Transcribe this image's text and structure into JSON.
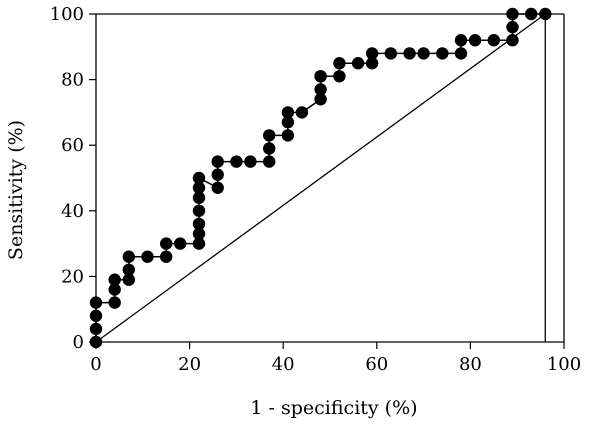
{
  "chart_data": {
    "type": "line",
    "title": "",
    "xlabel": "1 - specificity (%)",
    "ylabel": "Sensitivity (%)",
    "xlim": [
      0,
      100
    ],
    "ylim": [
      0,
      100
    ],
    "x_ticks": [
      "0",
      "20",
      "40",
      "60",
      "80",
      "100"
    ],
    "y_ticks": [
      "0",
      "20",
      "40",
      "60",
      "80",
      "100"
    ],
    "grid": false,
    "legend": "none",
    "colors": {
      "curve": "#000000",
      "marker": "#000000",
      "reference": "#000000"
    },
    "series": [
      {
        "values_x": [
          0,
          0,
          0,
          0,
          4,
          4,
          4,
          7,
          7,
          7,
          11,
          15,
          15,
          18,
          22,
          22,
          22,
          22,
          22,
          22,
          22,
          26,
          26,
          26,
          30,
          33,
          37,
          37,
          37,
          41,
          41,
          41,
          44,
          48,
          48,
          48,
          48,
          52,
          52,
          56,
          59,
          59,
          63,
          67,
          70,
          74,
          78,
          78,
          81,
          85,
          89,
          89,
          89,
          93,
          96
        ],
        "values_y": [
          0,
          4,
          8,
          12,
          12,
          16,
          19,
          19,
          22,
          26,
          26,
          26,
          30,
          30,
          30,
          33,
          36,
          40,
          44,
          47,
          50,
          47,
          51,
          55,
          55,
          55,
          55,
          59,
          63,
          63,
          67,
          70,
          70,
          74,
          77,
          81,
          81,
          81,
          85,
          85,
          85,
          88,
          88,
          88,
          88,
          88,
          88,
          92,
          92,
          92,
          92,
          96,
          100,
          100,
          100
        ]
      },
      {
        "values_x": [
          0,
          96
        ],
        "values_y": [
          0,
          100
        ]
      }
    ]
  }
}
